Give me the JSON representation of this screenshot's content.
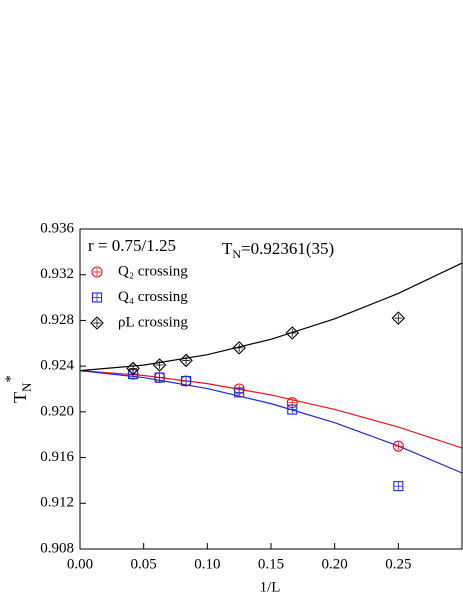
{
  "chart_data": {
    "type": "scatter",
    "ylabel": {
      "text": "T",
      "sub": "N",
      "sup": "*"
    },
    "xlabel": "1/L",
    "annotations": [
      {
        "text": "r = 0.75/1.25"
      },
      {
        "text": "T",
        "sub": "N",
        "rest": "=0.92361(35)"
      }
    ],
    "xlim": [
      0,
      0.3
    ],
    "ylim": [
      0.908,
      0.936
    ],
    "xticks": [
      {
        "value": 0,
        "label": "0.00"
      },
      0.05,
      {
        "value": 0.1,
        "label": "0.10"
      },
      0.15,
      {
        "value": 0.2,
        "label": "0.20"
      },
      0.25
    ],
    "yticks": [
      0.908,
      0.912,
      0.916,
      {
        "value": 0.92,
        "label": "0.920"
      },
      0.924,
      0.928,
      0.932,
      0.936
    ],
    "series": [
      {
        "name": "Q₂ crossing",
        "color": "#e8141c",
        "marker": "circle",
        "x": [
          0.0417,
          0.0625,
          0.0833,
          0.125,
          0.1667,
          0.25
        ],
        "values": [
          0.9233,
          0.923,
          0.9227,
          0.922,
          0.9208,
          0.917
        ]
      },
      {
        "name": "Q₄ crossing",
        "color": "#1f2bd0",
        "marker": "square",
        "x": [
          0.0417,
          0.0625,
          0.0833,
          0.125,
          0.1667,
          0.25
        ],
        "values": [
          0.9233,
          0.923,
          0.9227,
          0.9217,
          0.9202,
          0.9135
        ]
      },
      {
        "name": "ρL crossing",
        "color": "#000000",
        "marker": "diamond",
        "x": [
          0.0417,
          0.0625,
          0.0833,
          0.125,
          0.1667,
          0.25
        ],
        "values": [
          0.9238,
          0.9241,
          0.9245,
          0.9256,
          0.9269,
          0.9282
        ]
      }
    ],
    "fits": [
      {
        "color": "#e8141c",
        "x": [
          0,
          0.05,
          0.1,
          0.15,
          0.2,
          0.25,
          0.3
        ],
        "values": [
          0.92361,
          0.92318,
          0.92247,
          0.92148,
          0.92021,
          0.91867,
          0.91684
        ]
      },
      {
        "color": "#1f2bd0",
        "x": [
          0,
          0.05,
          0.1,
          0.15,
          0.2,
          0.25,
          0.3
        ],
        "values": [
          0.92361,
          0.923,
          0.92204,
          0.92072,
          0.91905,
          0.91702,
          0.91465
        ]
      },
      {
        "color": "#000000",
        "x": [
          0,
          0.05,
          0.1,
          0.15,
          0.2,
          0.25,
          0.3
        ],
        "values": [
          0.92361,
          0.92409,
          0.925,
          0.92635,
          0.92814,
          0.93036,
          0.93302
        ]
      }
    ]
  }
}
